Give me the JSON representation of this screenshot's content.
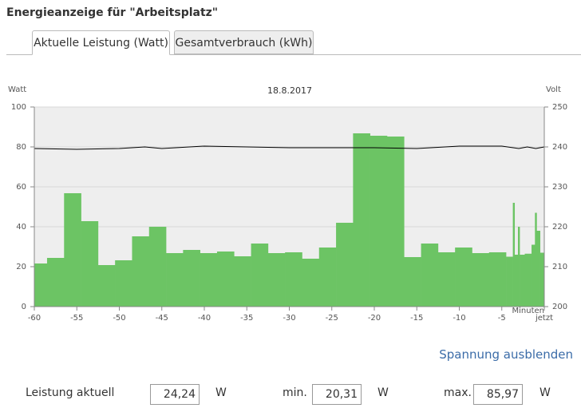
{
  "header": {
    "title": "Energieanzeige für \"Arbeitsplatz\""
  },
  "tabs": [
    "Aktuelle Leistung (Watt)",
    "Gesamtverbrauch (kWh)"
  ],
  "chart_data": {
    "type": "histogram",
    "title": "18.8.2017",
    "ylabel": "Watt",
    "y2label": "Volt",
    "xlabel": "Minuten",
    "bins": [
      -60,
      -58.5,
      -56.5,
      -54.5,
      -52.5,
      -50.5,
      -48.5,
      -46.5,
      -44.5,
      -42.5,
      -40.5,
      -38.5,
      -36.5,
      -34.5,
      -32.5,
      -30.5,
      -28.5,
      -26.5,
      -24.5,
      -22.5,
      -20.5,
      -18.5,
      -16.5,
      -14.5,
      -12.5,
      -10.5,
      -8.5,
      -6.5,
      -4.5,
      -3.7,
      -3.5,
      -3.1,
      -2.9,
      -2.3,
      -1.5,
      -1.1,
      -0.9,
      -0.5,
      0
    ],
    "values": [
      21.6,
      24.4,
      56.8,
      42.8,
      20.8,
      23.2,
      35.2,
      40,
      26.8,
      28.4,
      26.8,
      27.6,
      25.2,
      31.6,
      26.8,
      27.2,
      24,
      29.6,
      42,
      86.8,
      85.6,
      85.2,
      24.8,
      31.6,
      27.2,
      29.6,
      26.8,
      27.2,
      25,
      52,
      26,
      40,
      26,
      26.5,
      31,
      47,
      38,
      27
    ],
    "color": "#6cc464",
    "voltage": {
      "type": "line",
      "axis": "y2",
      "color": "#000000",
      "x": [
        -60,
        -55,
        -50,
        -47,
        -45,
        -40,
        -35,
        -30,
        -25,
        -20,
        -15,
        -10,
        -5,
        -3,
        -2,
        -1,
        0
      ],
      "values": [
        239.6,
        239.4,
        239.6,
        240,
        239.6,
        240.2,
        240,
        239.8,
        239.8,
        239.8,
        239.6,
        240.2,
        240.2,
        239.6,
        240,
        239.6,
        240
      ]
    },
    "xlim": [
      -60,
      0
    ],
    "xticks": [
      -60,
      -55,
      -50,
      -45,
      -40,
      -35,
      -30,
      -25,
      -20,
      -15,
      -10,
      -5,
      {
        "value": 0,
        "label": "jetzt"
      }
    ],
    "ylim": [
      0,
      100
    ],
    "yticks": [
      0,
      20,
      40,
      60,
      80,
      100
    ],
    "y2lim": [
      200,
      250
    ],
    "y2ticks": [
      200,
      210,
      220,
      230,
      240,
      250
    ],
    "grid": true
  },
  "link": "Spannung ausblenden",
  "stats": [
    {
      "label": "Leistung aktuell",
      "value": "24,24",
      "unit": "W"
    },
    {
      "label": "min.",
      "value": "20,31",
      "unit": "W"
    },
    {
      "label": "max.",
      "value": "85,97",
      "unit": "W"
    }
  ]
}
